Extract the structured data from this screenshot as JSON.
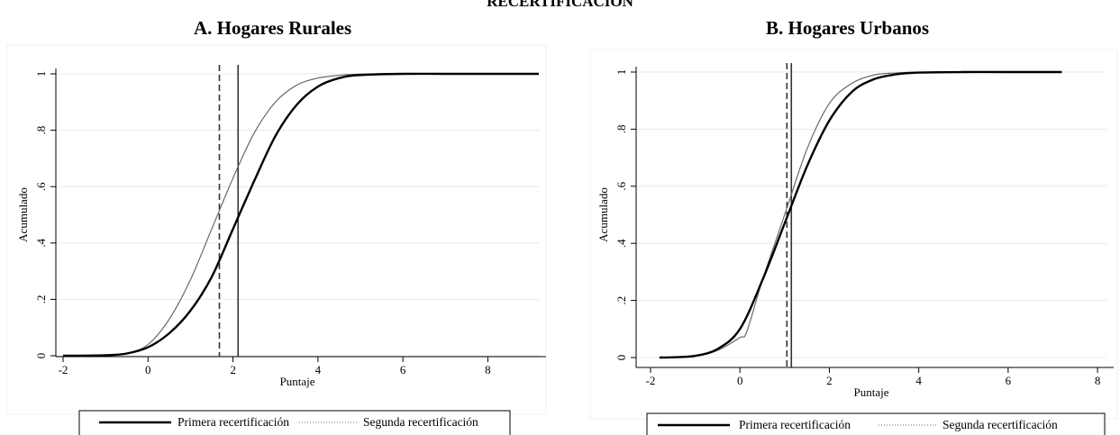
{
  "page_title": "RECERTIFICACIÓN",
  "panels": [
    {
      "title": "A.   Hogares Rurales"
    },
    {
      "title": "B.   Hogares Urbanos"
    }
  ],
  "chart_data": [
    {
      "type": "line",
      "title": "A.   Hogares Rurales",
      "xlabel": "Puntaje",
      "ylabel": "Acumulado",
      "xlim": [
        -2,
        9.2
      ],
      "ylim": [
        0,
        1
      ],
      "x_ticks": [
        -2,
        0,
        2,
        4,
        6,
        8
      ],
      "x_tick_labels": [
        "-2",
        "0",
        "2",
        "4",
        "6",
        "8"
      ],
      "y_ticks": [
        0,
        0.2,
        0.4,
        0.6,
        0.8,
        1
      ],
      "y_tick_labels": [
        "0",
        ".2",
        ".4",
        ".6",
        ".8",
        "1"
      ],
      "grid": "horizontal",
      "legend": "bottom",
      "series": [
        {
          "name": "Primera recertificación",
          "style": "thick-solid",
          "x": [
            -2,
            -1,
            -0.5,
            0,
            0.5,
            1,
            1.5,
            2,
            2.5,
            3,
            3.5,
            4,
            4.5,
            5,
            6,
            7,
            8,
            9.2
          ],
          "y": [
            0,
            0.002,
            0.008,
            0.03,
            0.08,
            0.16,
            0.28,
            0.45,
            0.62,
            0.78,
            0.89,
            0.955,
            0.985,
            0.996,
            1,
            1,
            1,
            1
          ]
        },
        {
          "name": "Segunda recertificación",
          "style": "thin-dotted",
          "x": [
            -2,
            -1,
            -0.5,
            0,
            0.5,
            1,
            1.5,
            2,
            2.5,
            3,
            3.5,
            4,
            4.5,
            5,
            6,
            7,
            8,
            9.2
          ],
          "y": [
            0,
            0.002,
            0.009,
            0.04,
            0.13,
            0.27,
            0.45,
            0.63,
            0.79,
            0.9,
            0.96,
            0.985,
            0.995,
            0.999,
            1,
            1,
            1,
            1
          ]
        }
      ],
      "vlines": [
        {
          "x": 1.68,
          "style": "dashed"
        },
        {
          "x": 2.12,
          "style": "solid"
        }
      ]
    },
    {
      "type": "line",
      "title": "B.   Hogares Urbanos",
      "xlabel": "Puntaje",
      "ylabel": "Acumulado",
      "xlim": [
        -2,
        8.2
      ],
      "ylim": [
        0,
        1
      ],
      "x_ticks": [
        -2,
        0,
        2,
        4,
        6,
        8
      ],
      "x_tick_labels": [
        "-2",
        "0",
        "2",
        "4",
        "6",
        "8"
      ],
      "y_ticks": [
        0,
        0.2,
        0.4,
        0.6,
        0.8,
        1
      ],
      "y_tick_labels": [
        "0",
        ".2",
        ".4",
        ".6",
        ".8",
        "1"
      ],
      "grid": "horizontal",
      "legend": "bottom",
      "series": [
        {
          "name": "Primera recertificación",
          "style": "thick-solid",
          "x": [
            -1.8,
            -1.5,
            -1,
            -0.5,
            0,
            0.5,
            1,
            1.5,
            2,
            2.5,
            3,
            3.5,
            4,
            5,
            6,
            7.2
          ],
          "y": [
            0,
            0.001,
            0.006,
            0.03,
            0.1,
            0.27,
            0.47,
            0.67,
            0.83,
            0.93,
            0.975,
            0.992,
            0.998,
            1,
            1,
            1
          ]
        },
        {
          "name": "Segunda recertificación",
          "style": "thin-dotted",
          "x": [
            -1.8,
            -1.5,
            -1,
            -0.5,
            0,
            0.15,
            0.5,
            1,
            1.5,
            2,
            2.5,
            3,
            3.5,
            4,
            5,
            6,
            7.2
          ],
          "y": [
            0,
            0.001,
            0.005,
            0.025,
            0.07,
            0.09,
            0.27,
            0.5,
            0.73,
            0.89,
            0.96,
            0.99,
            0.997,
            1,
            1,
            1,
            1
          ]
        }
      ],
      "vlines": [
        {
          "x": 1.05,
          "style": "dashed"
        },
        {
          "x": 1.15,
          "style": "solid"
        }
      ]
    }
  ]
}
